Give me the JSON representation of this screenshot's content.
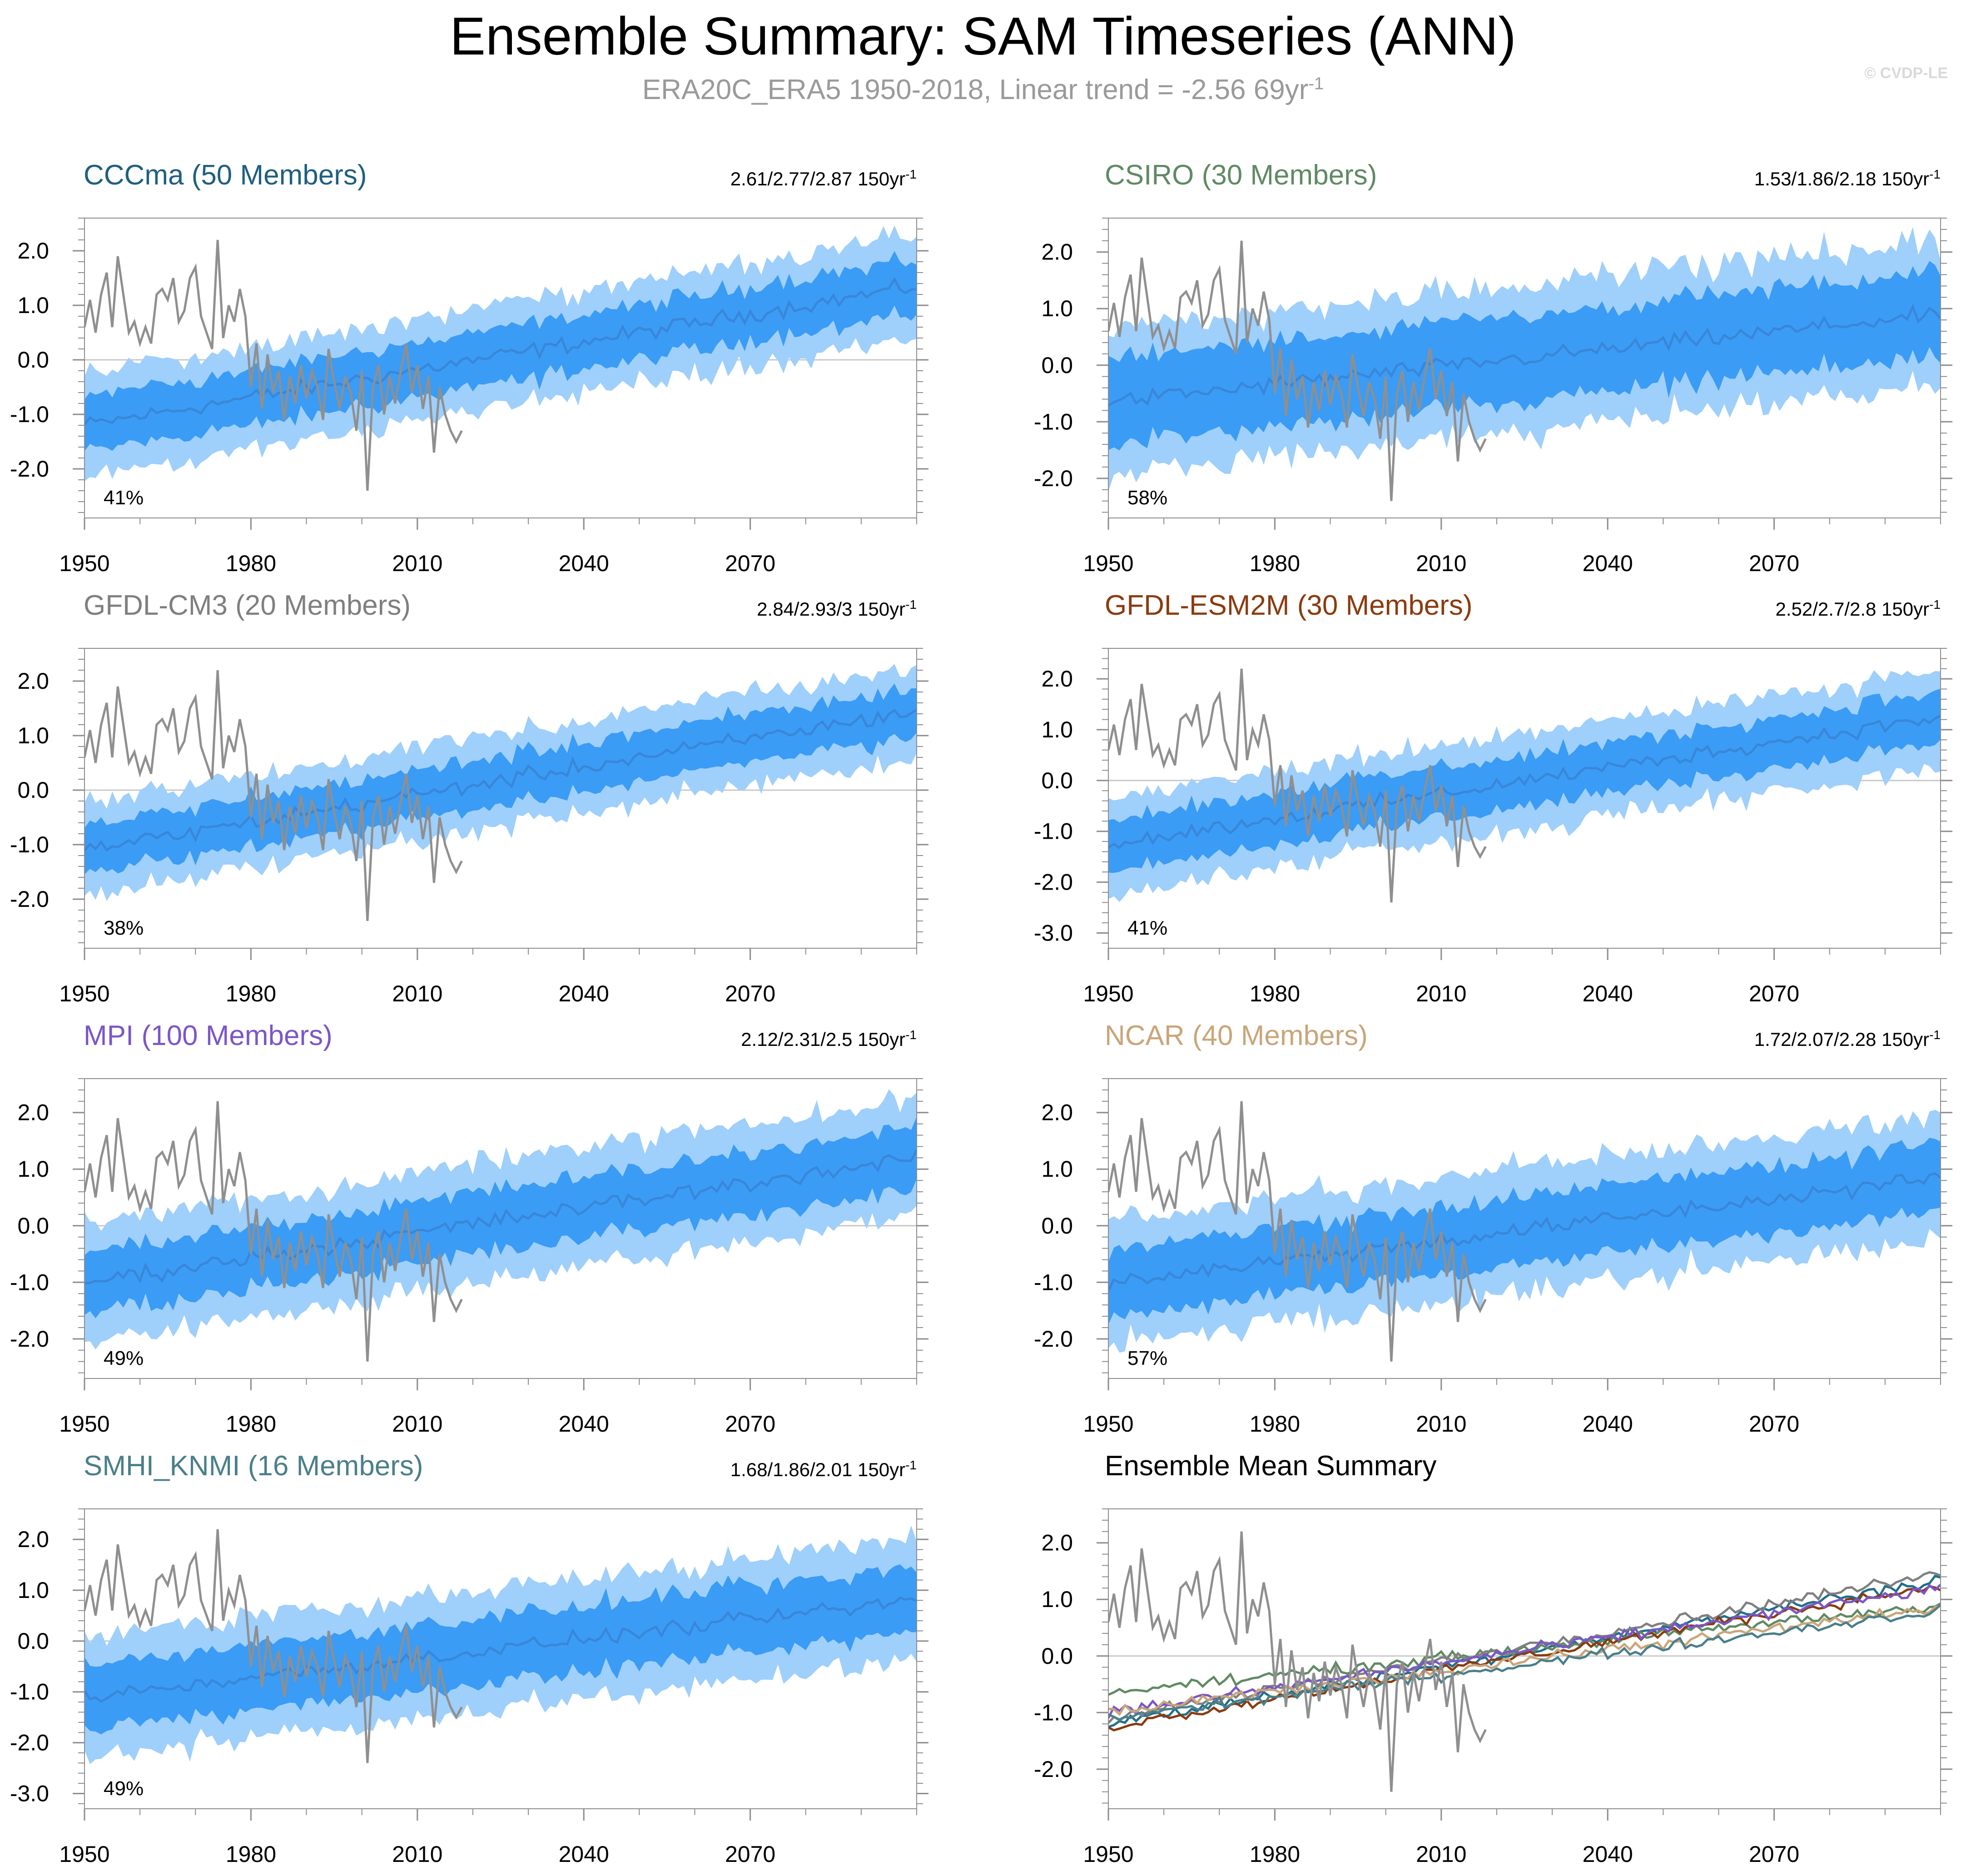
{
  "header": {
    "title": "Ensemble Summary: SAM Timeseries (ANN)",
    "subtitle_main": "ERA20C_ERA5 1950-2018, Linear trend = -2.56 69yr",
    "subtitle_sup": "-1",
    "copyright": "© CVDP-LE"
  },
  "colors": {
    "band_outer": "#9fcffb",
    "band_inner": "#3a9cf5",
    "ens_mean": "#3a86d8",
    "obs": "#8f8f8f",
    "zero_line": "#c8c8c8"
  },
  "x_tick_labels": [
    "1950",
    "1980",
    "2010",
    "2040",
    "2070"
  ],
  "chart_data": [
    {
      "type": "area",
      "name": "CCCma",
      "title": "CCCma (50 Members)",
      "title_color": "#1f5f80",
      "trend": "2.61/2.77/2.87 150yr",
      "trend_sup": "-1",
      "percent": "41%",
      "ylim": [
        -2.9,
        2.6
      ],
      "yticks": [
        2.0,
        1.0,
        0.0,
        -1.0,
        -2.0
      ],
      "yticklabels": [
        "2.0",
        "1.0",
        "0.0",
        "-1.0",
        "-2.0"
      ],
      "xlim": [
        1950,
        2100
      ],
      "mean_start": -1.2,
      "mean_end": 1.35,
      "inner_half": 0.5,
      "outer_half": 0.95
    },
    {
      "type": "area",
      "name": "CSIRO",
      "title": "CSIRO (30 Members)",
      "title_color": "#5f8a63",
      "trend": "1.53/1.86/2.18 150yr",
      "trend_sup": "-1",
      "percent": "58%",
      "ylim": [
        -2.7,
        2.6
      ],
      "yticks": [
        2.0,
        1.0,
        0.0,
        -1.0,
        -2.0
      ],
      "yticklabels": [
        "2.0",
        "1.0",
        "0.0",
        "-1.0",
        "-2.0"
      ],
      "xlim": [
        1950,
        2100
      ],
      "mean_start": -0.65,
      "mean_end": 0.9,
      "inner_half": 0.75,
      "outer_half": 1.3
    },
    {
      "type": "area",
      "name": "GFDL-CM3",
      "title": "GFDL-CM3 (20 Members)",
      "title_color": "#7f7f7f",
      "trend": "2.84/2.93/3 150yr",
      "trend_sup": "-1",
      "percent": "38%",
      "ylim": [
        -2.9,
        2.6
      ],
      "yticks": [
        2.0,
        1.0,
        0.0,
        -1.0,
        -2.0
      ],
      "yticklabels": [
        "2.0",
        "1.0",
        "0.0",
        "-1.0",
        "-2.0"
      ],
      "xlim": [
        1950,
        2100
      ],
      "mean_start": -1.1,
      "mean_end": 1.45,
      "inner_half": 0.45,
      "outer_half": 0.85
    },
    {
      "type": "area",
      "name": "GFDL-ESM2M",
      "title": "GFDL-ESM2M (30 Members)",
      "title_color": "#8b3a0e",
      "trend": "2.52/2.7/2.8 150yr",
      "trend_sup": "-1",
      "percent": "41%",
      "ylim": [
        -3.3,
        2.6
      ],
      "yticks": [
        2.0,
        1.0,
        0.0,
        -1.0,
        -2.0,
        -3.0
      ],
      "yticklabels": [
        "2.0",
        "1.0",
        "0.0",
        "-1.0",
        "-2.0",
        "-3.0"
      ],
      "xlim": [
        1950,
        2100
      ],
      "mean_start": -1.25,
      "mean_end": 1.25,
      "inner_half": 0.5,
      "outer_half": 0.95
    },
    {
      "type": "area",
      "name": "MPI",
      "title": "MPI (100 Members)",
      "title_color": "#7b56c8",
      "trend": "2.12/2.31/2.5 150yr",
      "trend_sup": "-1",
      "percent": "49%",
      "ylim": [
        -2.7,
        2.6
      ],
      "yticks": [
        2.0,
        1.0,
        0.0,
        -1.0,
        -2.0
      ],
      "yticklabels": [
        "2.0",
        "1.0",
        "0.0",
        "-1.0",
        "-2.0"
      ],
      "xlim": [
        1950,
        2100
      ],
      "mean_start": -1.0,
      "mean_end": 1.2,
      "inner_half": 0.55,
      "outer_half": 1.05
    },
    {
      "type": "area",
      "name": "NCAR",
      "title": "NCAR (40 Members)",
      "title_color": "#c9a57a",
      "trend": "1.72/2.07/2.28 150yr",
      "trend_sup": "-1",
      "percent": "57%",
      "ylim": [
        -2.7,
        2.6
      ],
      "yticks": [
        2.0,
        1.0,
        0.0,
        -1.0,
        -2.0
      ],
      "yticklabels": [
        "2.0",
        "1.0",
        "0.0",
        "-1.0",
        "-2.0"
      ],
      "xlim": [
        1950,
        2100
      ],
      "mean_start": -1.0,
      "mean_end": 0.85,
      "inner_half": 0.6,
      "outer_half": 1.1
    },
    {
      "type": "area",
      "name": "SMHI_KNMI",
      "title": "SMHI_KNMI (16 Members)",
      "title_color": "#4a7f8a",
      "trend": "1.68/1.86/2.01 150yr",
      "trend_sup": "-1",
      "percent": "49%",
      "ylim": [
        -3.3,
        2.6
      ],
      "yticks": [
        2.0,
        1.0,
        0.0,
        -1.0,
        -2.0,
        -3.0
      ],
      "yticklabels": [
        "2.0",
        "1.0",
        "0.0",
        "-1.0",
        "-2.0",
        "-3.0"
      ],
      "xlim": [
        1950,
        2100
      ],
      "mean_start": -1.1,
      "mean_end": 0.8,
      "inner_half": 0.65,
      "outer_half": 1.2
    },
    {
      "type": "line",
      "name": "Ensemble Mean Summary",
      "title": "Ensemble Mean Summary",
      "title_color": "#000000",
      "trend": "",
      "trend_sup": "",
      "percent": "",
      "ylim": [
        -2.7,
        2.6
      ],
      "yticks": [
        2.0,
        1.0,
        0.0,
        -1.0,
        -2.0
      ],
      "yticklabels": [
        "2.0",
        "1.0",
        "0.0",
        "-1.0",
        "-2.0"
      ],
      "xlim": [
        1950,
        2100
      ],
      "series": [
        {
          "name": "CCCma",
          "color": "#1f6f8b",
          "start": -1.2,
          "end": 1.35
        },
        {
          "name": "CSIRO",
          "color": "#5f8a63",
          "start": -0.65,
          "end": 0.9
        },
        {
          "name": "GFDL-CM3",
          "color": "#808080",
          "start": -1.1,
          "end": 1.45
        },
        {
          "name": "GFDL-ESM2M",
          "color": "#8b3a0e",
          "start": -1.25,
          "end": 1.25
        },
        {
          "name": "MPI",
          "color": "#7b56c8",
          "start": -1.0,
          "end": 1.2
        },
        {
          "name": "NCAR",
          "color": "#c9a57a",
          "start": -1.0,
          "end": 0.85
        },
        {
          "name": "SMHI_KNMI",
          "color": "#4a7f8a",
          "start": -1.1,
          "end": 0.8
        }
      ]
    }
  ],
  "obs_series": {
    "name": "ERA20C_ERA5",
    "years": [
      1950,
      1951,
      1952,
      1953,
      1954,
      1955,
      1956,
      1957,
      1958,
      1959,
      1960,
      1961,
      1962,
      1963,
      1964,
      1965,
      1966,
      1967,
      1968,
      1969,
      1970,
      1971,
      1972,
      1973,
      1974,
      1975,
      1976,
      1977,
      1978,
      1979,
      1980,
      1981,
      1982,
      1983,
      1984,
      1985,
      1986,
      1987,
      1988,
      1989,
      1990,
      1991,
      1992,
      1993,
      1994,
      1995,
      1996,
      1997,
      1998,
      1999,
      2000,
      2001,
      2002,
      2003,
      2004,
      2005,
      2006,
      2007,
      2008,
      2009,
      2010,
      2011,
      2012,
      2013,
      2014,
      2015,
      2016,
      2017,
      2018
    ],
    "values": [
      0.6,
      1.1,
      0.5,
      1.2,
      1.6,
      0.6,
      1.9,
      1.2,
      0.5,
      0.7,
      0.3,
      0.6,
      0.3,
      1.2,
      1.3,
      1.1,
      1.5,
      0.7,
      0.9,
      1.5,
      1.7,
      0.8,
      0.5,
      0.2,
      2.2,
      0.4,
      1.0,
      0.7,
      1.3,
      0.8,
      -0.5,
      0.3,
      -0.9,
      0.1,
      -0.6,
      -0.2,
      -1.1,
      -0.3,
      -0.8,
      -0.1,
      -0.7,
      -0.2,
      -0.5,
      -1.1,
      0.2,
      -0.4,
      -0.9,
      -0.3,
      -0.6,
      -1.3,
      -0.2,
      -2.4,
      -0.5,
      -0.1,
      -1.0,
      -0.3,
      -0.8,
      -0.2,
      0.3,
      -0.6,
      -0.1,
      -0.9,
      -0.3,
      -1.7,
      -0.5,
      -1.0,
      -1.3,
      -1.5,
      -1.3
    ]
  }
}
